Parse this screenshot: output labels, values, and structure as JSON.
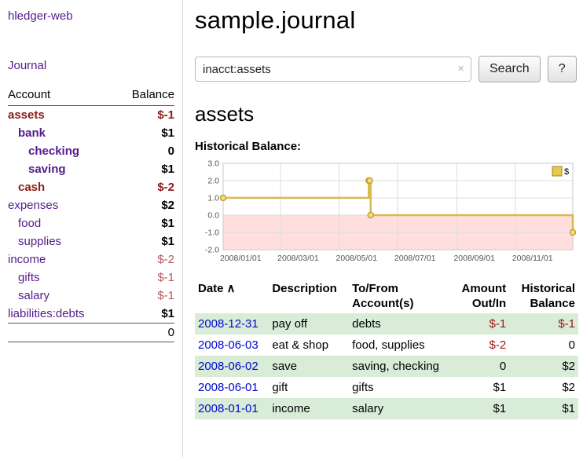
{
  "app": {
    "brand": "hledger-web",
    "nav_journal": "Journal"
  },
  "sidebar": {
    "headers": {
      "account": "Account",
      "balance": "Balance"
    },
    "accounts": [
      {
        "name": "assets",
        "depth": 0,
        "balance": "$-1",
        "emph": true
      },
      {
        "name": "bank",
        "depth": 1,
        "balance": "$1",
        "emph": true
      },
      {
        "name": "checking",
        "depth": 2,
        "balance": "0",
        "emph": true
      },
      {
        "name": "saving",
        "depth": 2,
        "balance": "$1",
        "emph": true
      },
      {
        "name": "cash",
        "depth": 1,
        "balance": "$-2",
        "emph": true
      },
      {
        "name": "expenses",
        "depth": 0,
        "balance": "$2",
        "emph": false
      },
      {
        "name": "food",
        "depth": 1,
        "balance": "$1",
        "emph": false
      },
      {
        "name": "supplies",
        "depth": 1,
        "balance": "$1",
        "emph": false
      },
      {
        "name": "income",
        "depth": 0,
        "balance": "$-2",
        "emph": false
      },
      {
        "name": "gifts",
        "depth": 1,
        "balance": "$-1",
        "emph": false
      },
      {
        "name": "salary",
        "depth": 1,
        "balance": "$-1",
        "emph": false
      },
      {
        "name": "liabilities:debts",
        "depth": 0,
        "balance": "$1",
        "emph": false
      }
    ],
    "total": "0"
  },
  "main": {
    "title": "sample.journal",
    "search": {
      "value": "inacct:assets",
      "clear_icon": "×",
      "button": "Search",
      "help": "?"
    },
    "account_heading": "assets",
    "chart_label": "Historical Balance:"
  },
  "chart_data": {
    "type": "line",
    "style": "step-after",
    "title": "Historical Balance",
    "legend": "$",
    "legend_position": "top-right",
    "grid": true,
    "x_range": [
      "2008-01-01",
      "2008-12-31"
    ],
    "ylim": [
      -2,
      3
    ],
    "yticks": [
      3,
      2,
      1,
      0,
      -1,
      -2
    ],
    "xticks": [
      "2008/01/01",
      "2008/03/01",
      "2008/05/01",
      "2008/07/01",
      "2008/09/01",
      "2008/11/01"
    ],
    "points": [
      {
        "date": "2008-01-01",
        "value": 1
      },
      {
        "date": "2008-06-01",
        "value": 2
      },
      {
        "date": "2008-06-02",
        "value": 2
      },
      {
        "date": "2008-06-03",
        "value": 0
      },
      {
        "date": "2008-12-31",
        "value": -1
      }
    ],
    "colors": {
      "line": "#d8b94e",
      "marker_fill": "#f4dd85",
      "marker_stroke": "#c3a02c",
      "negative_region": "#ffdede",
      "grid": "#dddddd",
      "legend_fill": "#e8c84f",
      "legend_stroke": "#9a8420"
    }
  },
  "register": {
    "headers": {
      "date": "Date",
      "sort_icon": "∧",
      "description": "Description",
      "accounts": "To/From Account(s)",
      "amount": "Amount Out/In",
      "balance": "Historical Balance"
    },
    "rows": [
      {
        "date": "2008-12-31",
        "description": "pay off",
        "accounts": "debts",
        "amount": "$-1",
        "balance": "$-1"
      },
      {
        "date": "2008-06-03",
        "description": "eat & shop",
        "accounts": "food, supplies",
        "amount": "$-2",
        "balance": "0"
      },
      {
        "date": "2008-06-02",
        "description": "save",
        "accounts": "saving, checking",
        "amount": "0",
        "balance": "$2"
      },
      {
        "date": "2008-06-01",
        "description": "gift",
        "accounts": "gifts",
        "amount": "$1",
        "balance": "$2"
      },
      {
        "date": "2008-01-01",
        "description": "income",
        "accounts": "salary",
        "amount": "$1",
        "balance": "$1"
      }
    ]
  }
}
